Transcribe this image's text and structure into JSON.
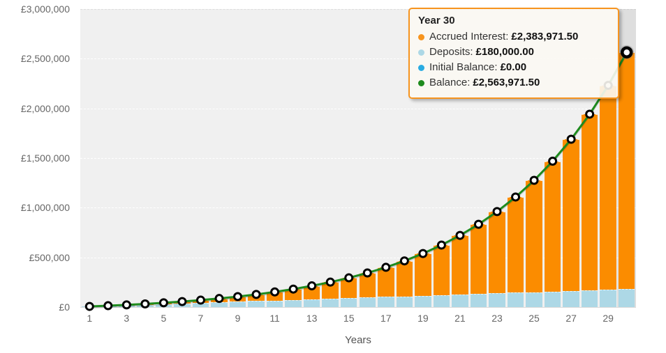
{
  "tooltip": {
    "title": "Year 30",
    "border_color": "#F7941E",
    "rows": [
      {
        "label": "Accrued Interest:",
        "value": "£2,383,971.50",
        "bullet_color": "#F7941E"
      },
      {
        "label": "Deposits:",
        "value": "£180,000.00",
        "bullet_color": "#ADD8E6"
      },
      {
        "label": "Initial Balance:",
        "value": "£0.00",
        "bullet_color": "#29ABE2"
      },
      {
        "label": "Balance:",
        "value": "£2,563,971.50",
        "bullet_color": "#1E8B1E"
      }
    ]
  },
  "chart_data": {
    "type": "bar",
    "subtype": "stacked-columns-with-line-overlay",
    "xlabel": "Years",
    "ylabel": "",
    "x": [
      1,
      2,
      3,
      4,
      5,
      6,
      7,
      8,
      9,
      10,
      11,
      12,
      13,
      14,
      15,
      16,
      17,
      18,
      19,
      20,
      21,
      22,
      23,
      24,
      25,
      26,
      27,
      28,
      29,
      30
    ],
    "x_ticks": [
      1,
      3,
      5,
      7,
      9,
      11,
      13,
      15,
      17,
      19,
      21,
      23,
      25,
      27,
      29
    ],
    "ylim": [
      0,
      3000000
    ],
    "y_ticks": [
      0,
      500000,
      1000000,
      1500000,
      2000000,
      2500000,
      3000000
    ],
    "y_tick_labels": [
      "£0",
      "£500,000",
      "£1,000,000",
      "£1,500,000",
      "£2,000,000",
      "£2,500,000",
      "£3,000,000"
    ],
    "grid": "horizontal-dashed",
    "legend_position": "none (values shown in hover tooltip)",
    "highlight_year": 30,
    "series": [
      {
        "name": "Accrued Interest",
        "type": "column-stack",
        "color": "#FB8C00",
        "values": [
          392,
          1715,
          4107,
          7725,
          12746,
          19375,
          27848,
          38433,
          51439,
          67218,
          86176,
          108775,
          135548,
          167105,
          204143,
          247461,
          297976,
          356743,
          424962,
          504011,
          595471,
          701153,
          823135,
          963797,
          1125852,
          1312433,
          1527114,
          1774013,
          2057837,
          2383971.5
        ]
      },
      {
        "name": "Deposits",
        "type": "column-stack",
        "color": "#ADD8E6",
        "values": [
          6000,
          12000,
          18000,
          24000,
          30000,
          36000,
          42000,
          48000,
          54000,
          60000,
          66000,
          72000,
          78000,
          84000,
          90000,
          96000,
          102000,
          108000,
          114000,
          120000,
          126000,
          132000,
          138000,
          144000,
          150000,
          156000,
          162000,
          168000,
          174000,
          180000
        ]
      },
      {
        "name": "Initial Balance",
        "type": "column-stack",
        "color": "#29ABE2",
        "values": [
          0,
          0,
          0,
          0,
          0,
          0,
          0,
          0,
          0,
          0,
          0,
          0,
          0,
          0,
          0,
          0,
          0,
          0,
          0,
          0,
          0,
          0,
          0,
          0,
          0,
          0,
          0,
          0,
          0,
          0
        ]
      },
      {
        "name": "Balance",
        "type": "line",
        "color": "#1E8B1E",
        "values": [
          6392,
          13715,
          22107,
          31725,
          42746,
          55375,
          69848,
          86433,
          105439,
          127218,
          152176,
          180775,
          213548,
          251105,
          294143,
          343461,
          399976,
          464743,
          538962,
          624011,
          721471,
          833153,
          961135,
          1107797,
          1275852,
          1468433,
          1689114,
          1942013,
          2231837,
          2563971.5
        ]
      }
    ],
    "colors": {
      "plot_background": "#F0F0F0",
      "gridline": "#FFFFFF",
      "marker_fill": "#FFFFFF",
      "marker_stroke": "#000000",
      "hover_band": "rgba(160,160,160,0.22)"
    }
  }
}
